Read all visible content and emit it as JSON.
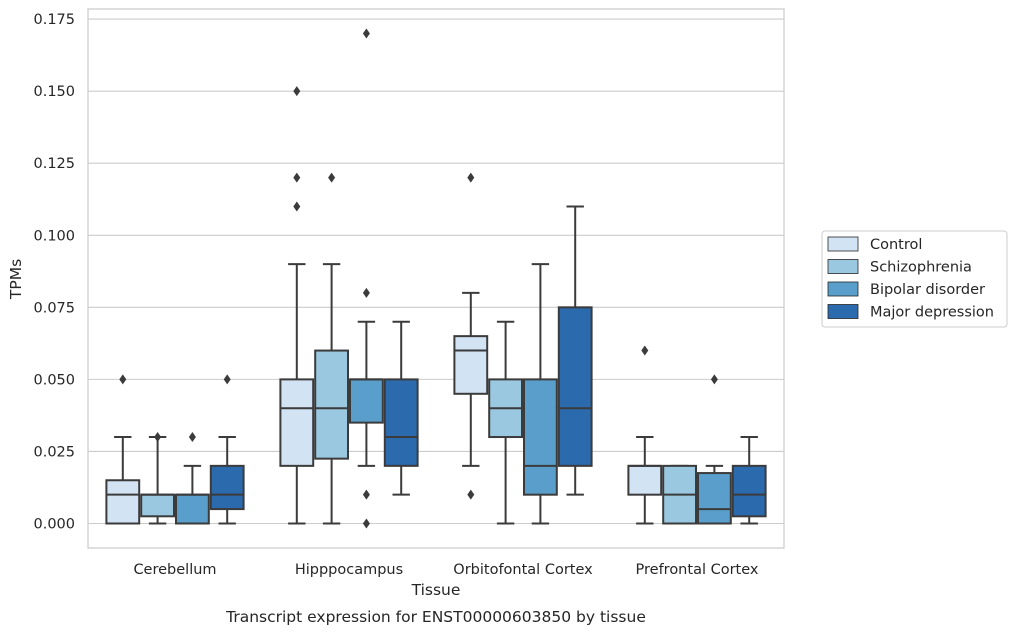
{
  "chart_data": {
    "type": "box",
    "title": "",
    "caption": "Transcript expression for ENST00000603850 by tissue",
    "xlabel": "Tissue",
    "ylabel": "TPMs",
    "ylim": [
      -0.0085,
      0.1785
    ],
    "yticks": [
      "0.000",
      "0.025",
      "0.050",
      "0.075",
      "0.100",
      "0.125",
      "0.150",
      "0.175"
    ],
    "grid": "horizontal",
    "legend_position": "right",
    "categories": [
      "Cerebellum",
      "Hipppocampus",
      "Orbitofontal Cortex",
      "Prefrontal Cortex"
    ],
    "series": [
      {
        "name": "Control",
        "color": "#d2e3f3",
        "boxes": [
          {
            "whislo": 0.0,
            "q1": 0.0,
            "med": 0.01,
            "q3": 0.015,
            "whishi": 0.03,
            "fliers": [
              0.05
            ]
          },
          {
            "whislo": 0.0,
            "q1": 0.02,
            "med": 0.04,
            "q3": 0.05,
            "whishi": 0.09,
            "fliers": [
              0.11,
              0.12,
              0.15
            ]
          },
          {
            "whislo": 0.02,
            "q1": 0.045,
            "med": 0.06,
            "q3": 0.065,
            "whishi": 0.08,
            "fliers": [
              0.01,
              0.12
            ]
          },
          {
            "whislo": 0.0,
            "q1": 0.01,
            "med": 0.02,
            "q3": 0.02,
            "whishi": 0.03,
            "fliers": [
              0.06
            ]
          }
        ]
      },
      {
        "name": "Schizophrenia",
        "color": "#9ac8e0",
        "boxes": [
          {
            "whislo": 0.0,
            "q1": 0.0025,
            "med": 0.01,
            "q3": 0.01,
            "whishi": 0.03,
            "fliers": [
              0.03
            ]
          },
          {
            "whislo": 0.0,
            "q1": 0.0225,
            "med": 0.04,
            "q3": 0.06,
            "whishi": 0.09,
            "fliers": [
              0.12
            ]
          },
          {
            "whislo": 0.0,
            "q1": 0.03,
            "med": 0.04,
            "q3": 0.05,
            "whishi": 0.07,
            "fliers": []
          },
          {
            "whislo": 0.0,
            "q1": 0.0,
            "med": 0.01,
            "q3": 0.02,
            "whishi": 0.02,
            "fliers": []
          }
        ]
      },
      {
        "name": "Bipolar disorder",
        "color": "#5a9ecb",
        "boxes": [
          {
            "whislo": 0.0,
            "q1": 0.0,
            "med": 0.01,
            "q3": 0.01,
            "whishi": 0.02,
            "fliers": [
              0.03
            ]
          },
          {
            "whislo": 0.02,
            "q1": 0.035,
            "med": 0.05,
            "q3": 0.05,
            "whishi": 0.07,
            "fliers": [
              0.0,
              0.01,
              0.08,
              0.17
            ]
          },
          {
            "whislo": 0.0,
            "q1": 0.01,
            "med": 0.02,
            "q3": 0.05,
            "whishi": 0.09,
            "fliers": []
          },
          {
            "whislo": 0.0,
            "q1": 0.0,
            "med": 0.005,
            "q3": 0.0175,
            "whishi": 0.02,
            "fliers": [
              0.05
            ]
          }
        ]
      },
      {
        "name": "Major depression",
        "color": "#2a6aad",
        "boxes": [
          {
            "whislo": 0.0,
            "q1": 0.005,
            "med": 0.01,
            "q3": 0.02,
            "whishi": 0.03,
            "fliers": [
              0.05
            ]
          },
          {
            "whislo": 0.01,
            "q1": 0.02,
            "med": 0.03,
            "q3": 0.05,
            "whishi": 0.07,
            "fliers": []
          },
          {
            "whislo": 0.01,
            "q1": 0.02,
            "med": 0.04,
            "q3": 0.075,
            "whishi": 0.11,
            "fliers": []
          },
          {
            "whislo": 0.0,
            "q1": 0.0025,
            "med": 0.01,
            "q3": 0.02,
            "whishi": 0.03,
            "fliers": []
          }
        ]
      }
    ]
  }
}
